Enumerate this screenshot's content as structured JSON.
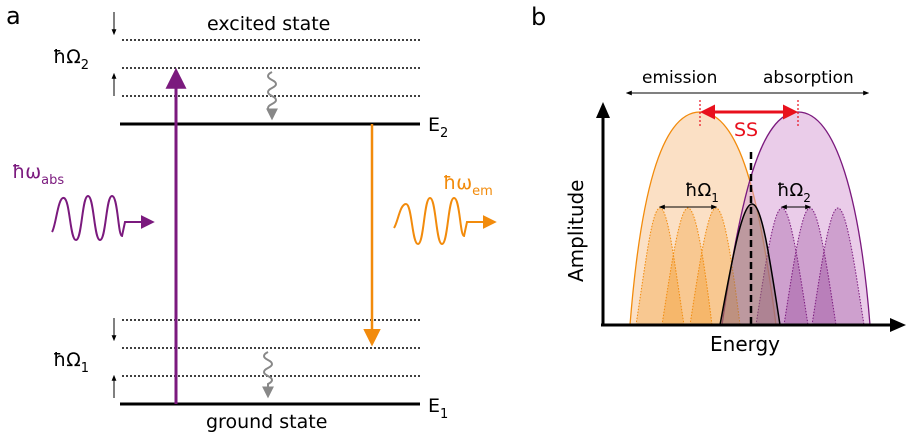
{
  "panel_a": {
    "label": "a",
    "excited_state": "excited state",
    "ground_state": "ground state",
    "E2": {
      "base": "E",
      "sub": "2"
    },
    "E1": {
      "base": "E",
      "sub": "1"
    },
    "hOmega2": {
      "base": "ħΩ",
      "sub": "2"
    },
    "hOmega1": {
      "base": "ħΩ",
      "sub": "1"
    },
    "hw_abs": {
      "base": "ħω",
      "sub": "abs"
    },
    "hw_em": {
      "base": "ħω",
      "sub": "em"
    }
  },
  "panel_b": {
    "label": "b",
    "emission": "emission",
    "absorption": "absorption",
    "stokes_shift": "SS",
    "hOmega1": {
      "base": "ħΩ",
      "sub": "1"
    },
    "hOmega2": {
      "base": "ħΩ",
      "sub": "2"
    },
    "xlabel": "Energy",
    "ylabel": "Amplitude"
  },
  "colors": {
    "absorption": "#7b1a7e",
    "emission": "#f28b0c",
    "stokes": "#e8101d",
    "relaxation": "#888888",
    "emission_fill": "#f7c796",
    "absorption_fill": "#d9a3d7"
  }
}
